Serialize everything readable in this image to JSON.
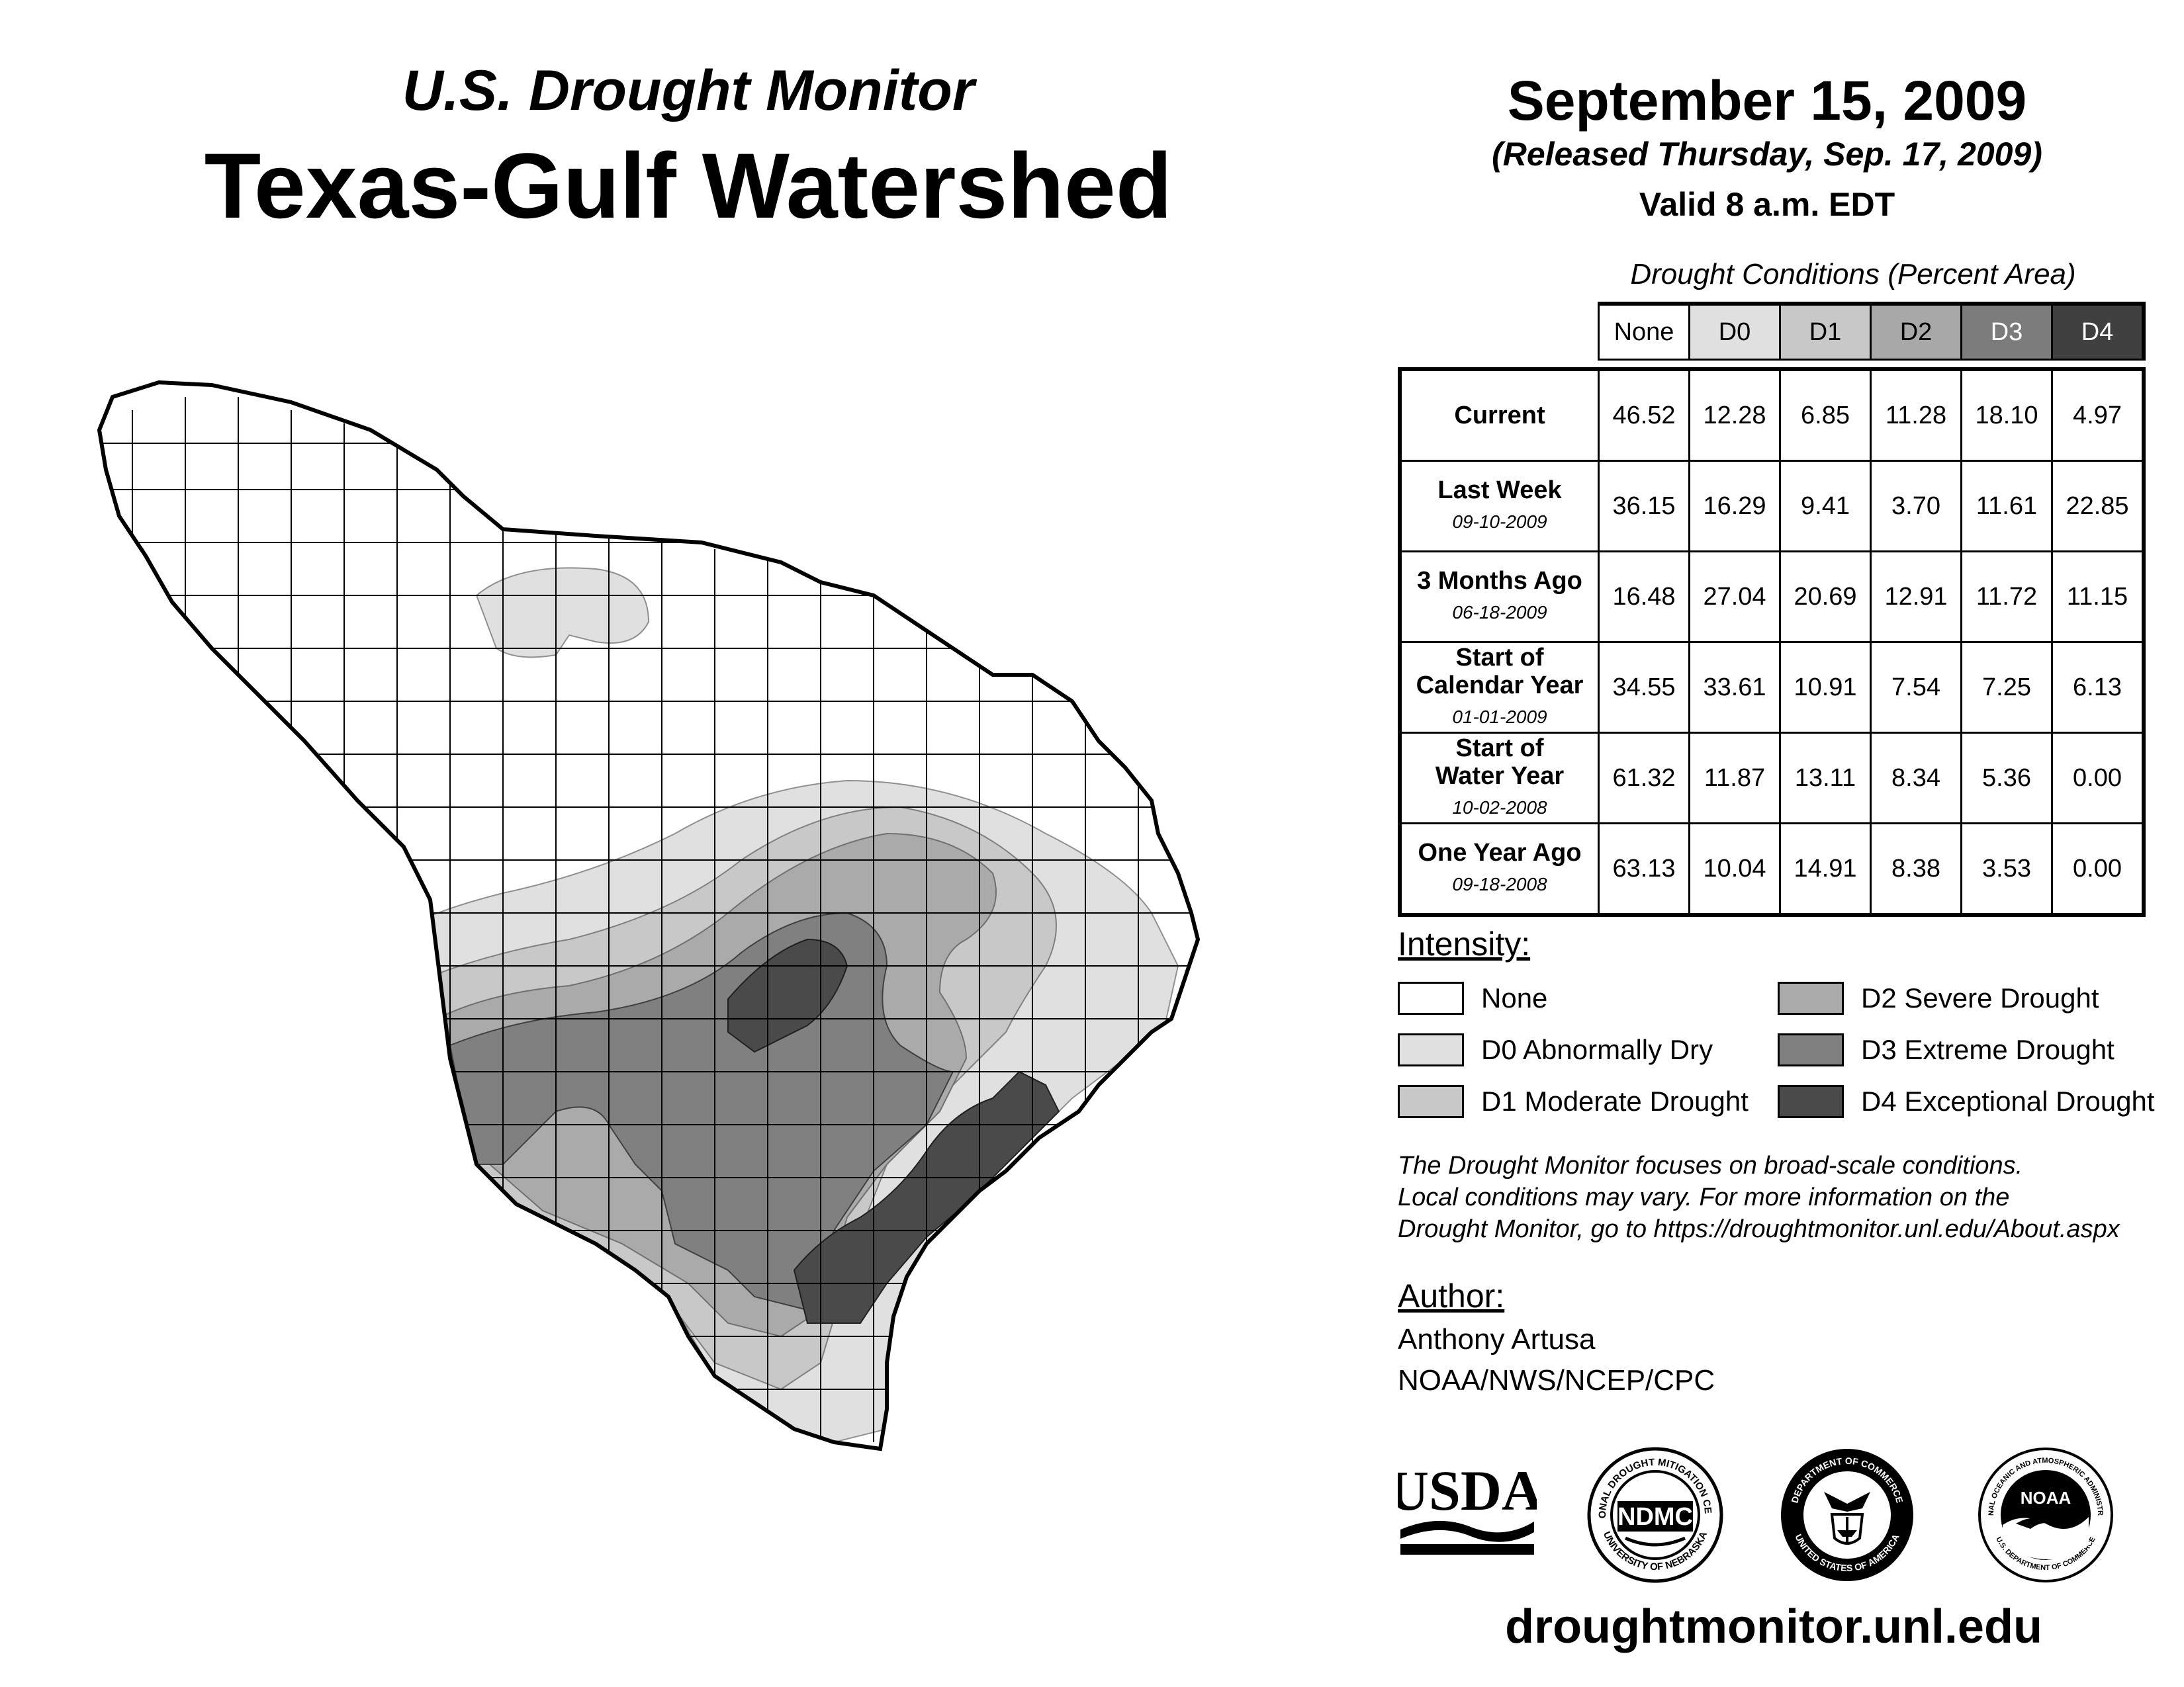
{
  "header": {
    "subtitle": "U.S. Drought Monitor",
    "title": "Texas-Gulf Watershed",
    "date": "September 15, 2009",
    "released": "(Released Thursday, Sep. 17, 2009)",
    "valid": "Valid 8 a.m. EDT"
  },
  "table": {
    "caption": "Drought Conditions (Percent Area)",
    "columns": [
      "None",
      "D0",
      "D1",
      "D2",
      "D3",
      "D4"
    ],
    "rows": [
      {
        "label_lines": [
          "Current"
        ],
        "date": "",
        "values": [
          "46.52",
          "12.28",
          "6.85",
          "11.28",
          "18.10",
          "4.97"
        ]
      },
      {
        "label_lines": [
          "Last Week"
        ],
        "date": "09-10-2009",
        "values": [
          "36.15",
          "16.29",
          "9.41",
          "3.70",
          "11.61",
          "22.85"
        ]
      },
      {
        "label_lines": [
          "3 Months Ago"
        ],
        "date": "06-18-2009",
        "values": [
          "16.48",
          "27.04",
          "20.69",
          "12.91",
          "11.72",
          "11.15"
        ]
      },
      {
        "label_lines": [
          "Start of",
          "Calendar Year"
        ],
        "date": "01-01-2009",
        "values": [
          "34.55",
          "33.61",
          "10.91",
          "7.54",
          "7.25",
          "6.13"
        ]
      },
      {
        "label_lines": [
          "Start of",
          "Water Year"
        ],
        "date": "10-02-2008",
        "values": [
          "61.32",
          "11.87",
          "13.11",
          "8.34",
          "5.36",
          "0.00"
        ]
      },
      {
        "label_lines": [
          "One Year Ago"
        ],
        "date": "09-18-2008",
        "values": [
          "63.13",
          "10.04",
          "14.91",
          "8.38",
          "3.53",
          "0.00"
        ]
      }
    ]
  },
  "legend": {
    "title": "Intensity:",
    "items": [
      {
        "label": "None",
        "color": "#ffffff"
      },
      {
        "label": "D0 Abnormally Dry",
        "color": "#e0e0e0"
      },
      {
        "label": "D1 Moderate Drought",
        "color": "#c8c8c8"
      },
      {
        "label": "D2 Severe Drought",
        "color": "#aaaaaa"
      },
      {
        "label": "D3 Extreme Drought",
        "color": "#808080"
      },
      {
        "label": "D4 Exceptional Drought",
        "color": "#4a4a4a"
      }
    ]
  },
  "note": {
    "lines": [
      "The Drought Monitor focuses on broad-scale conditions.",
      "Local conditions may vary. For more information on the",
      "Drought Monitor, go to https://droughtmonitor.unl.edu/About.aspx"
    ]
  },
  "author": {
    "title": "Author:",
    "name": "Anthony Artusa",
    "org": "NOAA/NWS/NCEP/CPC"
  },
  "logos": {
    "usda": "USDA",
    "ndmc": "NDMC",
    "ndmc_ring": "NATIONAL DROUGHT MITIGATION CENTER",
    "ndmc_ring_bottom": "UNIVERSITY OF NEBRASKA",
    "doc_ring": "DEPARTMENT OF COMMERCE",
    "doc_ring_bottom": "UNITED STATES OF AMERICA",
    "noaa": "NOAA",
    "noaa_ring": "NATIONAL OCEANIC AND ATMOSPHERIC ADMINISTRATION",
    "noaa_ring_bottom": "U.S. DEPARTMENT OF COMMERCE"
  },
  "footer": {
    "url": "droughtmonitor.unl.edu"
  },
  "colors": {
    "header_none": "#ffffff",
    "header_d0": "#e0e0e0",
    "header_d1": "#c8c8c8",
    "header_d2": "#a8a8a8",
    "header_d3": "#7c7c7c",
    "header_d4": "#404040"
  }
}
